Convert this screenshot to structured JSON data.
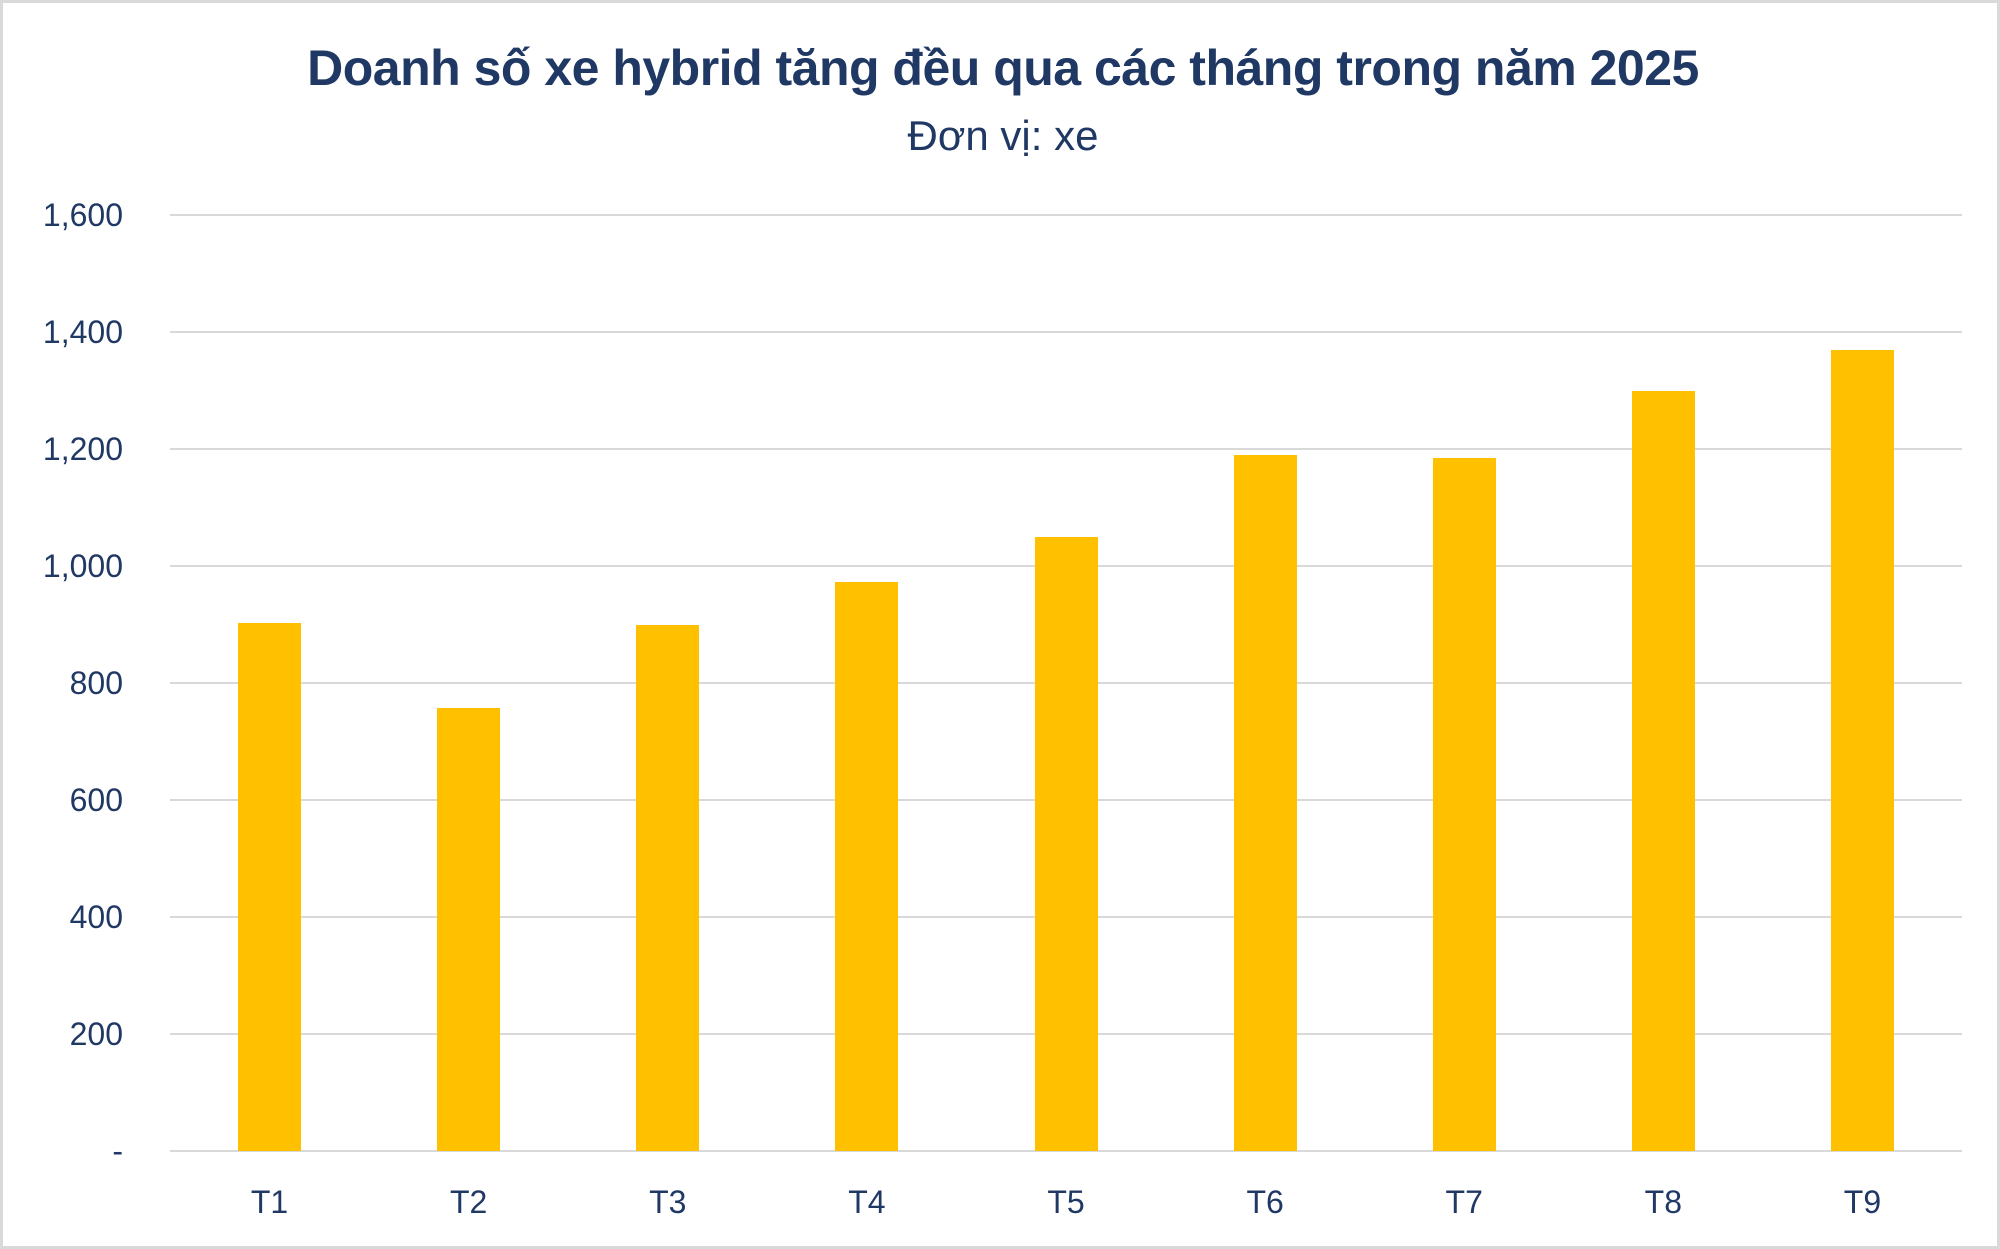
{
  "chart_data": {
    "type": "bar",
    "title": "Doanh số xe hybrid tăng đều qua các tháng trong năm 2025",
    "subtitle": "Đơn vị: xe",
    "xlabel": "",
    "ylabel": "",
    "categories": [
      "T1",
      "T2",
      "T3",
      "T4",
      "T5",
      "T6",
      "T7",
      "T8",
      "T9"
    ],
    "values": [
      903,
      757,
      900,
      973,
      1050,
      1190,
      1185,
      1300,
      1370
    ],
    "ylim": [
      0,
      1600
    ],
    "yticks": [
      0,
      200,
      400,
      600,
      800,
      1000,
      1200,
      1400,
      1600
    ],
    "ytick_labels": [
      "-",
      "200",
      "400",
      "600",
      "800",
      "1,000",
      "1,200",
      "1,400",
      "1,600"
    ],
    "grid": true,
    "legend": "none",
    "bar_color": "#ffc000"
  },
  "colors": {
    "text": "#203864",
    "grid": "#d9d9d9",
    "bar": "#ffc000",
    "border": "#d9d9d9"
  }
}
